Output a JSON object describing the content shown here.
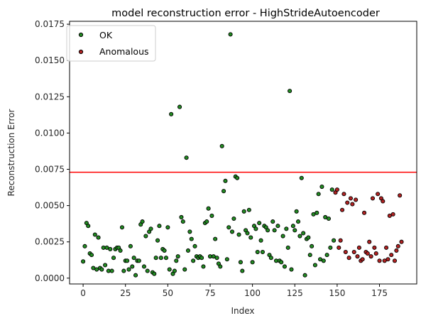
{
  "chart_data": {
    "type": "scatter",
    "title": "model reconstruction error - HighStrideAutoencoder",
    "xlabel": "Index",
    "ylabel": "Reconstruction Error",
    "xlim": [
      -8,
      197
    ],
    "ylim": [
      -0.0004,
      0.0177
    ],
    "xticks": [
      0,
      25,
      50,
      75,
      100,
      125,
      150,
      175
    ],
    "xtick_labels": [
      "0",
      "25",
      "50",
      "75",
      "100",
      "125",
      "150",
      "175"
    ],
    "yticks": [
      0.0,
      0.0025,
      0.005,
      0.0075,
      0.01,
      0.0125,
      0.015,
      0.0175
    ],
    "ytick_labels": [
      "0.0000",
      "0.0025",
      "0.0050",
      "0.0075",
      "0.0100",
      "0.0125",
      "0.0150",
      "0.0175"
    ],
    "threshold": {
      "value": 0.0073,
      "color": "#ff0000"
    },
    "legend_position": "top-left",
    "grid": false,
    "series": [
      {
        "name": "OK",
        "color": "#228b22",
        "points": [
          [
            0,
            0.00115
          ],
          [
            1,
            0.0022
          ],
          [
            2,
            0.0038
          ],
          [
            3,
            0.0036
          ],
          [
            4,
            0.0017
          ],
          [
            5,
            0.0016
          ],
          [
            6,
            0.0007
          ],
          [
            7,
            0.003
          ],
          [
            8,
            0.0006
          ],
          [
            9,
            0.0028
          ],
          [
            10,
            0.0007
          ],
          [
            11,
            0.0006
          ],
          [
            12,
            0.0021
          ],
          [
            13,
            0.0009
          ],
          [
            14,
            0.0021
          ],
          [
            15,
            0.0005
          ],
          [
            16,
            0.002
          ],
          [
            17,
            0.0005
          ],
          [
            18,
            0.0014
          ],
          [
            19,
            0.002
          ],
          [
            20,
            0.0021
          ],
          [
            21,
            0.0021
          ],
          [
            22,
            0.0019
          ],
          [
            23,
            0.0035
          ],
          [
            24,
            0.0005
          ],
          [
            25,
            0.0012
          ],
          [
            26,
            0.0012
          ],
          [
            27,
            0.0006
          ],
          [
            28,
            0.0022
          ],
          [
            29,
            0.0008
          ],
          [
            30,
            0.0014
          ],
          [
            31,
            0.0002
          ],
          [
            32,
            0.0012
          ],
          [
            33,
            0.0012
          ],
          [
            34,
            0.0037
          ],
          [
            35,
            0.0039
          ],
          [
            36,
            0.0008
          ],
          [
            37,
            0.0029
          ],
          [
            38,
            0.0005
          ],
          [
            39,
            0.0032
          ],
          [
            40,
            0.0034
          ],
          [
            41,
            0.0004
          ],
          [
            42,
            0.0003
          ],
          [
            43,
            0.0014
          ],
          [
            44,
            0.0026
          ],
          [
            45,
            0.0036
          ],
          [
            46,
            0.0014
          ],
          [
            47,
            0.002
          ],
          [
            48,
            0.0019
          ],
          [
            49,
            0.0014
          ],
          [
            50,
            0.0035
          ],
          [
            51,
            0.0006
          ],
          [
            52,
            0.0113
          ],
          [
            53,
            0.0003
          ],
          [
            54,
            0.0005
          ],
          [
            55,
            0.0012
          ],
          [
            56,
            0.0015
          ],
          [
            57,
            0.0118
          ],
          [
            58,
            0.0042
          ],
          [
            59,
            0.0039
          ],
          [
            60,
            0.0006
          ],
          [
            61,
            0.0083
          ],
          [
            62,
            0.0019
          ],
          [
            63,
            0.0032
          ],
          [
            64,
            0.0027
          ],
          [
            65,
            0.0012
          ],
          [
            66,
            0.0022
          ],
          [
            67,
            0.0015
          ],
          [
            68,
            0.0014
          ],
          [
            69,
            0.0015
          ],
          [
            70,
            0.0014
          ],
          [
            71,
            0.0008
          ],
          [
            72,
            0.0038
          ],
          [
            73,
            0.0039
          ],
          [
            74,
            0.0048
          ],
          [
            75,
            0.0015
          ],
          [
            76,
            0.0043
          ],
          [
            77,
            0.0015
          ],
          [
            78,
            0.0027
          ],
          [
            79,
            0.0014
          ],
          [
            80,
            0.001
          ],
          [
            81,
            0.0008
          ],
          [
            82,
            0.0091
          ],
          [
            83,
            0.006
          ],
          [
            84,
            0.0067
          ],
          [
            85,
            0.0013
          ],
          [
            86,
            0.0035
          ],
          [
            87,
            0.0168
          ],
          [
            88,
            0.0032
          ],
          [
            89,
            0.0041
          ],
          [
            90,
            0.007
          ],
          [
            91,
            0.0069
          ],
          [
            92,
            0.003
          ],
          [
            93,
            0.0011
          ],
          [
            94,
            0.0005
          ],
          [
            95,
            0.0046
          ],
          [
            96,
            0.0033
          ],
          [
            97,
            0.0031
          ],
          [
            98,
            0.0047
          ],
          [
            99,
            0.0028
          ],
          [
            100,
            0.0011
          ],
          [
            101,
            0.0036
          ],
          [
            102,
            0.0034
          ],
          [
            103,
            0.0018
          ],
          [
            104,
            0.0038
          ],
          [
            105,
            0.0026
          ],
          [
            106,
            0.0018
          ],
          [
            107,
            0.0036
          ],
          [
            108,
            0.0035
          ],
          [
            109,
            0.0033
          ],
          [
            110,
            0.0016
          ],
          [
            111,
            0.0014
          ],
          [
            112,
            0.0039
          ],
          [
            113,
            0.0033
          ],
          [
            114,
            0.0012
          ],
          [
            115,
            0.0036
          ],
          [
            116,
            0.0012
          ],
          [
            117,
            0.0011
          ],
          [
            118,
            0.0029
          ],
          [
            119,
            0.0008
          ],
          [
            120,
            0.0034
          ],
          [
            121,
            0.0021
          ],
          [
            122,
            0.0129
          ],
          [
            123,
            0.0006
          ],
          [
            124,
            0.0036
          ],
          [
            125,
            0.0033
          ],
          [
            126,
            0.0046
          ],
          [
            127,
            0.0039
          ],
          [
            128,
            0.0029
          ],
          [
            129,
            0.0069
          ],
          [
            130,
            0.0031
          ],
          [
            131,
            0.0002
          ],
          [
            132,
            0.0027
          ],
          [
            133,
            0.0028
          ],
          [
            134,
            0.0016
          ],
          [
            135,
            0.0022
          ],
          [
            136,
            0.0044
          ],
          [
            137,
            0.0009
          ],
          [
            138,
            0.0045
          ],
          [
            139,
            0.0058
          ],
          [
            140,
            0.0013
          ],
          [
            141,
            0.0063
          ],
          [
            142,
            0.0012
          ],
          [
            143,
            0.0042
          ],
          [
            144,
            0.0016
          ],
          [
            145,
            0.0041
          ],
          [
            146,
            0.0021
          ],
          [
            147,
            0.0061
          ],
          [
            148,
            0.0026
          ]
        ]
      },
      {
        "name": "Anomalous",
        "color": "#b22222",
        "points": [
          [
            149,
            0.0059
          ],
          [
            150,
            0.0061
          ],
          [
            151,
            0.0021
          ],
          [
            152,
            0.0026
          ],
          [
            153,
            0.0047
          ],
          [
            154,
            0.0058
          ],
          [
            155,
            0.0018
          ],
          [
            156,
            0.0052
          ],
          [
            157,
            0.0014
          ],
          [
            158,
            0.0055
          ],
          [
            159,
            0.0051
          ],
          [
            160,
            0.0018
          ],
          [
            161,
            0.0054
          ],
          [
            162,
            0.0015
          ],
          [
            163,
            0.0021
          ],
          [
            164,
            0.0012
          ],
          [
            165,
            0.0013
          ],
          [
            166,
            0.0045
          ],
          [
            167,
            0.0018
          ],
          [
            168,
            0.0017
          ],
          [
            169,
            0.0025
          ],
          [
            170,
            0.0015
          ],
          [
            171,
            0.0055
          ],
          [
            172,
            0.0021
          ],
          [
            173,
            0.0017
          ],
          [
            174,
            0.0058
          ],
          [
            175,
            0.0012
          ],
          [
            176,
            0.0055
          ],
          [
            177,
            0.0053
          ],
          [
            178,
            0.0012
          ],
          [
            179,
            0.0021
          ],
          [
            180,
            0.0013
          ],
          [
            181,
            0.0043
          ],
          [
            182,
            0.0016
          ],
          [
            183,
            0.0044
          ],
          [
            184,
            0.0012
          ],
          [
            185,
            0.0019
          ],
          [
            186,
            0.0022
          ],
          [
            187,
            0.0057
          ],
          [
            188,
            0.0025
          ]
        ]
      }
    ]
  }
}
